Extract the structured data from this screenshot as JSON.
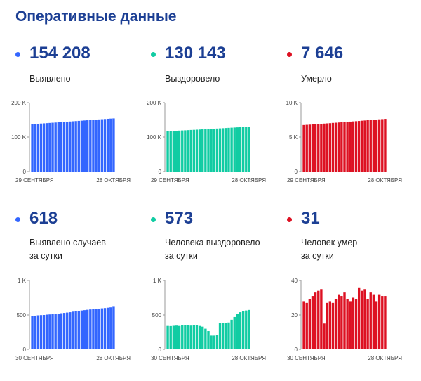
{
  "title": "Оперативные данные",
  "colors": {
    "blue": "#3366ff",
    "green": "#11cca3",
    "red": "#dd1122",
    "title": "#1c3f94"
  },
  "panels": [
    {
      "value": "154 208",
      "label_lines": [
        "Выявлено"
      ],
      "color": "blue"
    },
    {
      "value": "130 143",
      "label_lines": [
        "Выздоровело"
      ],
      "color": "green"
    },
    {
      "value": "7 646",
      "label_lines": [
        "Умерло"
      ],
      "color": "red"
    },
    {
      "value": "618",
      "label_lines": [
        "Выявлено случаев",
        "за сутки"
      ],
      "color": "blue"
    },
    {
      "value": "573",
      "label_lines": [
        "Человека выздоровело",
        "за сутки"
      ],
      "color": "green"
    },
    {
      "value": "31",
      "label_lines": [
        "Человек умер",
        "за сутки"
      ],
      "color": "red"
    }
  ],
  "chart_data": [
    {
      "type": "bar",
      "color": "blue",
      "ylim": [
        0,
        200000
      ],
      "yticks": [
        {
          "v": 0,
          "t": "0"
        },
        {
          "v": 100000,
          "t": "100 K"
        },
        {
          "v": 200000,
          "t": "200 K"
        }
      ],
      "xlabel_start": "29 СЕНТЯБРЯ",
      "xlabel_end": "28 ОКТЯБРЯ",
      "values": [
        137500,
        138100,
        138700,
        139300,
        139900,
        140500,
        141100,
        141700,
        142300,
        142900,
        143500,
        144100,
        144700,
        145300,
        145900,
        146500,
        147100,
        147700,
        148300,
        148900,
        149500,
        150100,
        150700,
        151300,
        151900,
        152500,
        153100,
        153700,
        154208
      ]
    },
    {
      "type": "bar",
      "color": "green",
      "ylim": [
        0,
        200000
      ],
      "yticks": [
        {
          "v": 0,
          "t": "0"
        },
        {
          "v": 100000,
          "t": "100 K"
        },
        {
          "v": 200000,
          "t": "200 K"
        }
      ],
      "xlabel_start": "29 СЕНТЯБРЯ",
      "xlabel_end": "28 ОКТЯБРЯ",
      "values": [
        117000,
        117400,
        117800,
        118300,
        118700,
        119200,
        119600,
        120100,
        120600,
        121000,
        121500,
        121900,
        122400,
        122900,
        123300,
        123800,
        124300,
        124800,
        125300,
        125800,
        126300,
        126800,
        127300,
        127800,
        128300,
        128800,
        129300,
        129700,
        130143
      ]
    },
    {
      "type": "bar",
      "color": "red",
      "ylim": [
        0,
        10000
      ],
      "yticks": [
        {
          "v": 0,
          "t": "0"
        },
        {
          "v": 5000,
          "t": "5 K"
        },
        {
          "v": 10000,
          "t": "10 K"
        }
      ],
      "xlabel_start": "29 СЕНТЯБРЯ",
      "xlabel_end": "28 ОКТЯБРЯ",
      "values": [
        6750,
        6780,
        6810,
        6840,
        6870,
        6900,
        6930,
        6960,
        6990,
        7020,
        7060,
        7090,
        7120,
        7150,
        7180,
        7210,
        7250,
        7280,
        7310,
        7340,
        7380,
        7410,
        7450,
        7480,
        7510,
        7540,
        7580,
        7610,
        7646
      ]
    },
    {
      "type": "bar",
      "color": "blue",
      "ylim": [
        0,
        1000
      ],
      "yticks": [
        {
          "v": 0,
          "t": "0"
        },
        {
          "v": 500,
          "t": "500"
        },
        {
          "v": 1000,
          "t": "1 K"
        }
      ],
      "xlabel_start": "30 СЕНТЯБРЯ",
      "xlabel_end": "28 ОКТЯБРЯ",
      "values": [
        485,
        490,
        495,
        498,
        500,
        505,
        508,
        512,
        515,
        520,
        525,
        530,
        535,
        540,
        548,
        553,
        560,
        565,
        570,
        575,
        580,
        585,
        588,
        592,
        596,
        600,
        605,
        610,
        618
      ]
    },
    {
      "type": "bar",
      "color": "green",
      "ylim": [
        0,
        1000
      ],
      "yticks": [
        {
          "v": 0,
          "t": "0"
        },
        {
          "v": 500,
          "t": "500"
        },
        {
          "v": 1000,
          "t": "1 K"
        }
      ],
      "xlabel_start": "30 СЕНТЯБРЯ",
      "xlabel_end": "28 ОКТЯБРЯ",
      "values": [
        340,
        338,
        342,
        345,
        340,
        350,
        352,
        348,
        345,
        355,
        350,
        340,
        330,
        300,
        265,
        200,
        200,
        205,
        380,
        382,
        385,
        390,
        430,
        470,
        515,
        540,
        555,
        565,
        573
      ]
    },
    {
      "type": "bar",
      "color": "red",
      "ylim": [
        0,
        40
      ],
      "yticks": [
        {
          "v": 0,
          "t": "0"
        },
        {
          "v": 20,
          "t": "20"
        },
        {
          "v": 40,
          "t": "40"
        }
      ],
      "xlabel_start": "30 СЕНТЯБРЯ",
      "xlabel_end": "28 ОКТЯБРЯ",
      "values": [
        28,
        27,
        29,
        31,
        33,
        34,
        35,
        15,
        27,
        28,
        27,
        29,
        32,
        31,
        33,
        29,
        28,
        30,
        29,
        36,
        34,
        35,
        29,
        33,
        32,
        28,
        32,
        31,
        31
      ]
    }
  ]
}
